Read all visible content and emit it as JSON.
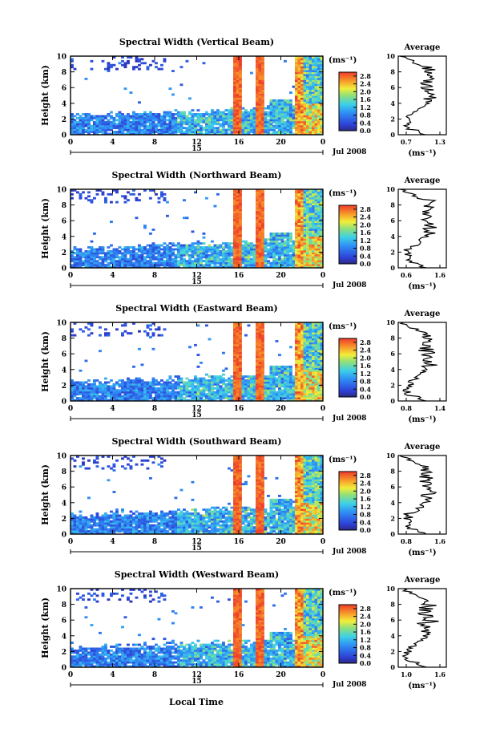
{
  "figure": {
    "xlabel": "Local Time",
    "date_label": "Jul 2008",
    "day_label": "15"
  },
  "chart_data": [
    {
      "type": "heatmap",
      "title": "Spectral Width (Vertical Beam)",
      "ylabel": "Height (km)",
      "xlabel": "Local Time",
      "x_ticks": [
        "0",
        "4",
        "8",
        "12",
        "16",
        "20",
        "0"
      ],
      "xlim": [
        0,
        24
      ],
      "y_ticks": [
        "0",
        "2",
        "4",
        "6",
        "8",
        "10"
      ],
      "ylim": [
        0,
        10
      ],
      "colorbar": {
        "unit": "(ms⁻¹)",
        "ticks": [
          "0.0",
          "0.4",
          "0.8",
          "1.2",
          "1.6",
          "2.0",
          "2.4",
          "2.8"
        ],
        "range": [
          0,
          3.0
        ]
      },
      "average": {
        "title": "Average",
        "xlabel": "(ms⁻¹)",
        "x_ticks": [
          "0.7",
          "1.3"
        ],
        "xlim": [
          0.7,
          1.3
        ],
        "y_ticks": [
          "0",
          "2",
          "4",
          "6",
          "8",
          "10"
        ]
      }
    },
    {
      "type": "heatmap",
      "title": "Spectral Width (Northward Beam)",
      "ylabel": "Height (km)",
      "xlabel": "Local Time",
      "x_ticks": [
        "0",
        "4",
        "8",
        "12",
        "16",
        "20",
        "0"
      ],
      "xlim": [
        0,
        24
      ],
      "y_ticks": [
        "0",
        "2",
        "4",
        "6",
        "8",
        "10"
      ],
      "ylim": [
        0,
        10
      ],
      "colorbar": {
        "unit": "(ms⁻¹)",
        "ticks": [
          "0.0",
          "0.4",
          "0.8",
          "1.2",
          "1.6",
          "2.0",
          "2.4",
          "2.8"
        ],
        "range": [
          0,
          3.0
        ]
      },
      "average": {
        "title": "Average",
        "xlabel": "(ms⁻¹)",
        "x_ticks": [
          "0.6",
          "1.6"
        ],
        "xlim": [
          0.6,
          1.6
        ],
        "y_ticks": [
          "0",
          "2",
          "4",
          "6",
          "8",
          "10"
        ]
      }
    },
    {
      "type": "heatmap",
      "title": "Spectral Width (Eastward Beam)",
      "ylabel": "Height (km)",
      "xlabel": "Local Time",
      "x_ticks": [
        "0",
        "4",
        "8",
        "12",
        "16",
        "20",
        "0"
      ],
      "xlim": [
        0,
        24
      ],
      "y_ticks": [
        "0",
        "2",
        "4",
        "6",
        "8",
        "10"
      ],
      "ylim": [
        0,
        10
      ],
      "colorbar": {
        "unit": "(ms⁻¹)",
        "ticks": [
          "0.0",
          "0.4",
          "0.8",
          "1.2",
          "1.6",
          "2.0",
          "2.4",
          "2.8"
        ],
        "range": [
          0,
          3.0
        ]
      },
      "average": {
        "title": "Average",
        "xlabel": "(ms⁻¹)",
        "x_ticks": [
          "0.8",
          "1.4"
        ],
        "xlim": [
          0.8,
          1.4
        ],
        "y_ticks": [
          "0",
          "2",
          "4",
          "6",
          "8",
          "10"
        ]
      }
    },
    {
      "type": "heatmap",
      "title": "Spectral Width (Southward Beam)",
      "ylabel": "Height (km)",
      "xlabel": "Local Time",
      "x_ticks": [
        "0",
        "4",
        "8",
        "12",
        "16",
        "20",
        "0"
      ],
      "xlim": [
        0,
        24
      ],
      "y_ticks": [
        "0",
        "2",
        "4",
        "6",
        "8",
        "10"
      ],
      "ylim": [
        0,
        10
      ],
      "colorbar": {
        "unit": "(ms⁻¹)",
        "ticks": [
          "0.0",
          "0.4",
          "0.8",
          "1.2",
          "1.6",
          "2.0",
          "2.4",
          "2.8"
        ],
        "range": [
          0,
          3.0
        ]
      },
      "average": {
        "title": "Average",
        "xlabel": "(ms⁻¹)",
        "x_ticks": [
          "0.8",
          "1.6"
        ],
        "xlim": [
          0.8,
          1.6
        ],
        "y_ticks": [
          "0",
          "2",
          "4",
          "6",
          "8",
          "10"
        ]
      }
    },
    {
      "type": "heatmap",
      "title": "Spectral Width (Westward Beam)",
      "ylabel": "Height (km)",
      "xlabel": "Local Time",
      "x_ticks": [
        "0",
        "4",
        "8",
        "12",
        "16",
        "20",
        "0"
      ],
      "xlim": [
        0,
        24
      ],
      "y_ticks": [
        "0",
        "2",
        "4",
        "6",
        "8",
        "10"
      ],
      "ylim": [
        0,
        10
      ],
      "colorbar": {
        "unit": "(ms⁻¹)",
        "ticks": [
          "0.0",
          "0.4",
          "0.8",
          "1.2",
          "1.6",
          "2.0",
          "2.4",
          "2.8"
        ],
        "range": [
          0,
          3.0
        ]
      },
      "average": {
        "title": "Average",
        "xlabel": "(ms⁻¹)",
        "x_ticks": [
          "1.0",
          "1.6"
        ],
        "xlim": [
          1.0,
          1.6
        ],
        "y_ticks": [
          "0",
          "2",
          "4",
          "6",
          "8",
          "10"
        ]
      }
    }
  ]
}
